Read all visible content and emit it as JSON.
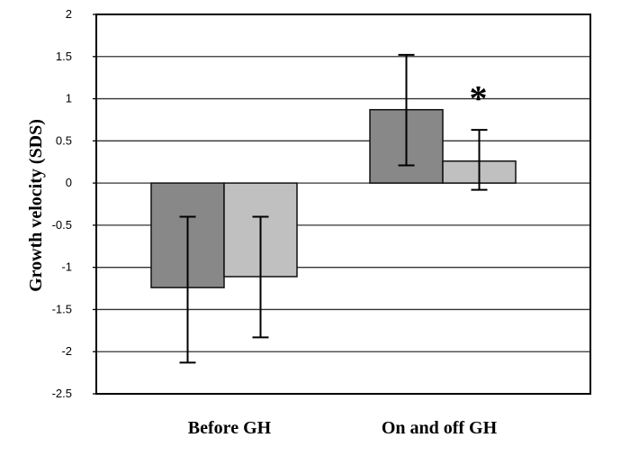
{
  "chart_data": {
    "type": "bar",
    "title": "",
    "xlabel": "",
    "ylabel": "Growth velocity (SDS)",
    "ylim": [
      -2.5,
      2
    ],
    "yticks": [
      "2",
      "1.5",
      "1",
      "0.5",
      "0",
      "-0.5",
      "-1",
      "-1.5",
      "-2",
      "-2.5"
    ],
    "ytick_values": [
      2,
      1.5,
      1,
      0.5,
      0,
      -0.5,
      -1,
      -1.5,
      -2,
      -2.5
    ],
    "grid": true,
    "categories": [
      "Before GH",
      "On and off GH"
    ],
    "series": [
      {
        "name": "dark",
        "color": "#888888",
        "values": [
          -1.24,
          0.87
        ],
        "err_low": [
          -2.13,
          0.21
        ],
        "err_high": [
          -0.4,
          1.52
        ]
      },
      {
        "name": "light",
        "color": "#c0c0c0",
        "values": [
          -1.11,
          0.26
        ],
        "err_low": [
          -1.83,
          -0.08
        ],
        "err_high": [
          -0.4,
          0.63
        ]
      }
    ],
    "annotations": [
      {
        "text": "*",
        "category": 1,
        "series": 1
      }
    ]
  }
}
